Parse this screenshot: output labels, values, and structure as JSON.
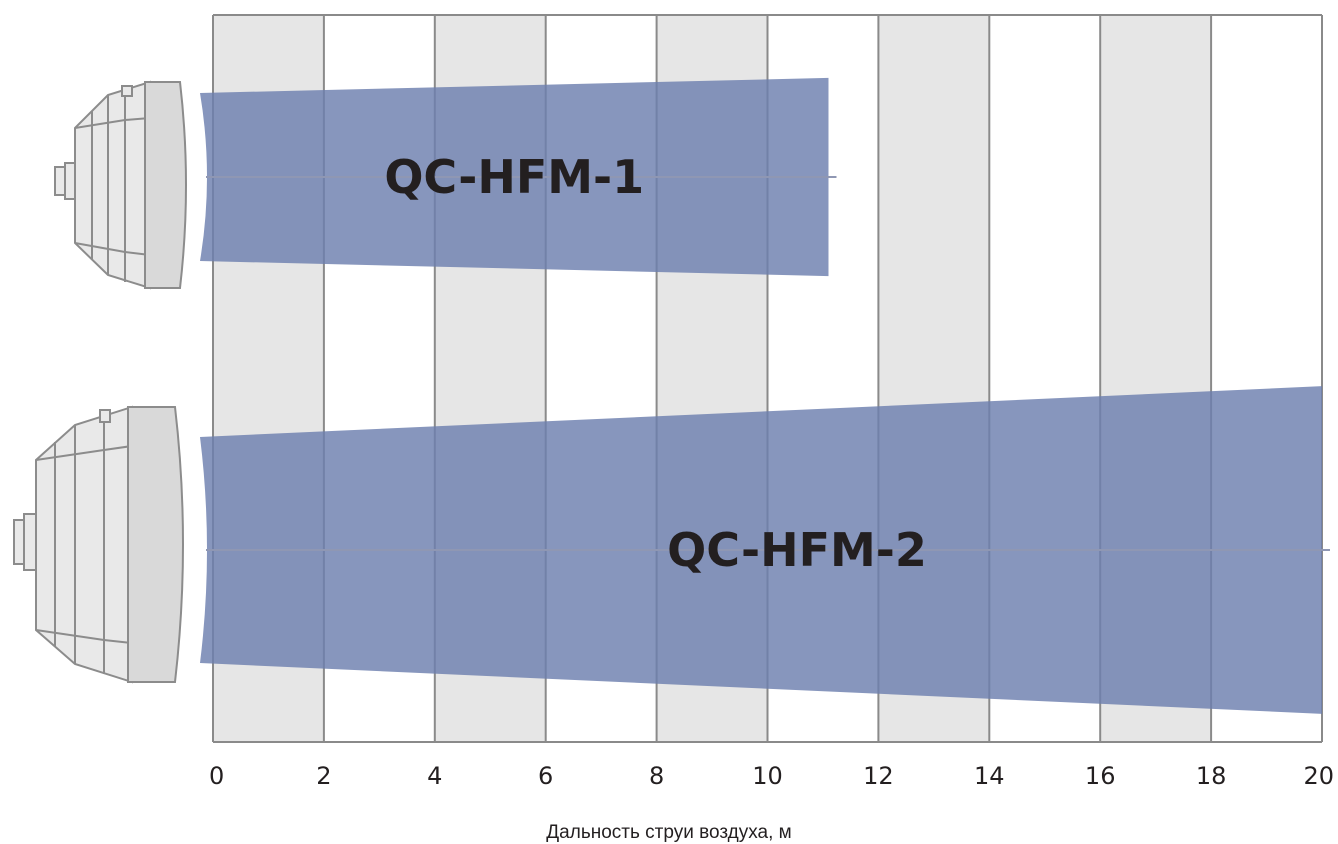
{
  "chart_data": {
    "type": "bar",
    "orientation": "horizontal",
    "xlabel": "Дальность струи воздуха, м",
    "xlim": [
      0,
      20
    ],
    "x_ticks": [
      "0",
      "2",
      "4",
      "6",
      "8",
      "10",
      "12",
      "14",
      "16",
      "18",
      "20"
    ],
    "grid": true,
    "alternating_bands": true,
    "bar_color": "#6d7fae",
    "band_color": "#e6e6e6",
    "grid_color": "#8a8a8a",
    "series": [
      {
        "name": "QC-HFM-1",
        "throw_m": 11.1
      },
      {
        "name": "QC-HFM-2",
        "throw_m": 20
      }
    ]
  }
}
